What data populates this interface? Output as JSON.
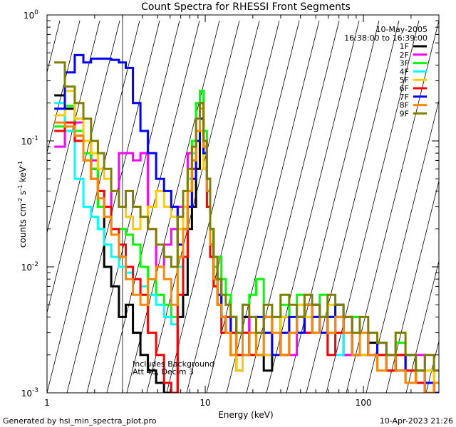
{
  "chart_data": {
    "type": "line",
    "title": "Count Spectra for RHESSI Front Segments",
    "xlabel": "Energy (keV)",
    "ylabel_parts": [
      "counts cm",
      "-2",
      " s",
      "-1",
      " keV",
      "-1"
    ],
    "x_scale": "log",
    "y_scale": "log",
    "xlim": [
      1,
      300
    ],
    "ylim": [
      0.001,
      1
    ],
    "x_ticks": [
      {
        "value": 1,
        "label": "1"
      },
      {
        "value": 10,
        "label": "10"
      },
      {
        "value": 100,
        "label": "100"
      }
    ],
    "y_ticks": [
      {
        "value": 1,
        "base": "10",
        "exp": "0"
      },
      {
        "value": 0.1,
        "base": "10",
        "exp": "-1"
      },
      {
        "value": 0.01,
        "base": "10",
        "exp": "-2"
      },
      {
        "value": 0.001,
        "base": "10",
        "exp": "-3"
      }
    ],
    "date": "10-May-2005",
    "time_range": "16:38:00 to 16:39:00",
    "attenuator_note": "Includes Background",
    "att_note": "Att 40, Decim 3",
    "shaded_below_keV": 3,
    "footer_left": "Generated by hsi_min_spectra_plot.pro",
    "footer_right": "10-Apr-2023 21:26",
    "series": [
      {
        "name": "1F",
        "color": "#000000",
        "x": [
          1.2,
          1.4,
          1.6,
          1.8,
          2.0,
          2.2,
          2.4,
          2.7,
          3.0,
          3.3,
          3.7,
          4.1,
          4.6,
          5.2,
          5.8,
          6.4,
          7.0,
          7.5,
          8.0,
          8.5,
          9.0,
          9.5,
          10.0,
          10.5,
          11.0,
          11.6,
          12.3,
          13.0,
          14.0,
          15.0,
          16.5,
          18,
          20,
          22,
          25,
          28,
          32,
          36,
          40,
          45,
          50,
          56,
          63,
          70,
          80,
          90,
          100,
          115,
          130,
          150,
          170,
          200,
          230,
          260,
          300
        ],
        "y": [
          0.23,
          0.18,
          0.11,
          0.1,
          0.06,
          0.03,
          0.01,
          0.007,
          0.004,
          0.005,
          0.003,
          0.002,
          0.0015,
          0.0012,
          0.001,
          0.0009,
          0.004,
          0.006,
          0.02,
          0.03,
          0.06,
          0.12,
          0.1,
          0.05,
          0.02,
          0.01,
          0.008,
          0.004,
          0.003,
          0.002,
          0.0015,
          0.004,
          0.003,
          0.002,
          0.0015,
          0.003,
          0.004,
          0.003,
          0.004,
          0.003,
          0.005,
          0.004,
          0.003,
          0.004,
          0.002,
          0.003,
          0.002,
          0.0025,
          0.002,
          0.0015,
          0.002,
          0.0012,
          0.0015,
          0.001,
          0.0012
        ]
      },
      {
        "name": "2F",
        "color": "#ff00ff",
        "x": [
          1.2,
          1.4,
          1.6,
          1.8,
          2.0,
          2.2,
          2.4,
          2.7,
          3.0,
          3.3,
          3.7,
          4.1,
          4.6,
          5.2,
          5.8,
          6.4,
          7.0,
          7.5,
          8.0,
          8.5,
          9.0,
          9.5,
          10.0,
          10.5,
          11.0,
          11.6,
          12.3,
          13.0,
          14.0,
          15.0,
          16.5,
          18,
          20,
          22,
          25,
          28,
          32,
          36,
          40,
          45,
          50,
          56,
          63,
          70,
          80,
          90,
          100,
          115,
          130,
          150,
          170,
          200,
          230,
          260,
          300
        ],
        "y": [
          0.09,
          0.12,
          0.14,
          0.1,
          0.07,
          0.04,
          0.03,
          0.04,
          0.08,
          0.08,
          0.07,
          0.08,
          0.02,
          0.01,
          0.015,
          0.02,
          0.03,
          0.03,
          0.08,
          0.09,
          0.15,
          0.2,
          0.1,
          0.04,
          0.015,
          0.008,
          0.006,
          0.004,
          0.003,
          0.002,
          0.0015,
          0.003,
          0.004,
          0.003,
          0.002,
          0.004,
          0.003,
          0.002,
          0.004,
          0.003,
          0.005,
          0.003,
          0.004,
          0.003,
          0.002,
          0.004,
          0.002,
          0.003,
          0.002,
          0.0015,
          0.002,
          0.0015,
          0.002,
          0.0012,
          0.0015
        ]
      },
      {
        "name": "3F",
        "color": "#00ff00",
        "x": [
          1.2,
          1.4,
          1.6,
          1.8,
          2.0,
          2.2,
          2.4,
          2.7,
          3.0,
          3.3,
          3.7,
          4.1,
          4.6,
          5.2,
          5.8,
          6.4,
          7.0,
          7.5,
          8.0,
          8.5,
          9.0,
          9.5,
          10.0,
          10.5,
          11.0,
          11.6,
          12.3,
          13.0,
          14.0,
          15.0,
          16.5,
          18,
          20,
          22,
          25,
          28,
          32,
          36,
          40,
          45,
          50,
          56,
          63,
          70,
          80,
          90,
          100,
          115,
          130,
          150,
          170,
          200,
          230,
          260,
          300
        ],
        "y": [
          0.13,
          0.19,
          0.12,
          0.08,
          0.06,
          0.03,
          0.025,
          0.02,
          0.02,
          0.018,
          0.015,
          0.01,
          0.008,
          0.006,
          0.005,
          0.004,
          0.02,
          0.03,
          0.05,
          0.1,
          0.2,
          0.25,
          0.12,
          0.05,
          0.02,
          0.01,
          0.012,
          0.008,
          0.006,
          0.004,
          0.003,
          0.005,
          0.006,
          0.008,
          0.004,
          0.003,
          0.005,
          0.004,
          0.006,
          0.005,
          0.004,
          0.006,
          0.004,
          0.005,
          0.003,
          0.004,
          0.003,
          0.003,
          0.002,
          0.002,
          0.0025,
          0.002,
          0.0015,
          0.0015,
          0.0012
        ]
      },
      {
        "name": "4F",
        "color": "#00ffff",
        "x": [
          1.2,
          1.4,
          1.6,
          1.8,
          2.0,
          2.2,
          2.4,
          2.7,
          3.0,
          3.3,
          3.7,
          4.1,
          4.6,
          5.2,
          5.8,
          6.4,
          7.0,
          7.5,
          8.0,
          8.5,
          9.0,
          9.5,
          10.0,
          10.5,
          11.0,
          11.6,
          12.3,
          13.0,
          14.0,
          15.0,
          16.5,
          18,
          20,
          22,
          25,
          28,
          32,
          36,
          40,
          45,
          50,
          56,
          63,
          70,
          80,
          90,
          100,
          115,
          130,
          150,
          170,
          200,
          230,
          260,
          300
        ],
        "y": [
          0.2,
          0.12,
          0.05,
          0.03,
          0.025,
          0.02,
          0.015,
          0.012,
          0.01,
          0.009,
          0.008,
          0.007,
          0.006,
          0.005,
          0.004,
          0.0035,
          0.01,
          0.02,
          0.05,
          0.08,
          0.15,
          0.18,
          0.09,
          0.04,
          0.015,
          0.008,
          0.006,
          0.004,
          0.003,
          0.002,
          0.0015,
          0.002,
          0.003,
          0.002,
          0.004,
          0.003,
          0.002,
          0.003,
          0.005,
          0.004,
          0.003,
          0.004,
          0.003,
          0.002,
          0.003,
          0.002,
          0.003,
          0.002,
          0.0015,
          0.002,
          0.0015,
          0.0012,
          0.0015,
          0.001,
          0.0012
        ]
      },
      {
        "name": "5F",
        "color": "#ffcc00",
        "x": [
          1.2,
          1.4,
          1.6,
          1.8,
          2.0,
          2.2,
          2.4,
          2.7,
          3.0,
          3.3,
          3.7,
          4.1,
          4.6,
          5.2,
          5.8,
          6.4,
          7.0,
          7.5,
          8.0,
          8.5,
          9.0,
          9.5,
          10.0,
          10.5,
          11.0,
          11.6,
          12.3,
          13.0,
          14.0,
          15.0,
          16.5,
          18,
          20,
          22,
          25,
          28,
          32,
          36,
          40,
          45,
          50,
          56,
          63,
          70,
          80,
          90,
          100,
          115,
          130,
          150,
          170,
          200,
          230,
          260,
          300
        ],
        "y": [
          0.16,
          0.25,
          0.15,
          0.1,
          0.08,
          0.06,
          0.05,
          0.04,
          0.03,
          0.025,
          0.02,
          0.025,
          0.03,
          0.04,
          0.03,
          0.025,
          0.02,
          0.03,
          0.04,
          0.06,
          0.1,
          0.12,
          0.06,
          0.03,
          0.012,
          0.007,
          0.005,
          0.004,
          0.003,
          0.002,
          0.0015,
          0.003,
          0.002,
          0.003,
          0.002,
          0.003,
          0.004,
          0.003,
          0.005,
          0.004,
          0.003,
          0.004,
          0.005,
          0.003,
          0.004,
          0.003,
          0.002,
          0.003,
          0.002,
          0.0015,
          0.002,
          0.0015,
          0.0012,
          0.0015,
          0.001
        ]
      },
      {
        "name": "6F",
        "color": "#ff0000",
        "x": [
          1.2,
          1.4,
          1.6,
          1.8,
          2.0,
          2.2,
          2.4,
          2.7,
          3.0,
          3.3,
          3.7,
          4.1,
          4.6,
          5.2,
          5.8,
          6.4,
          7.0,
          7.5,
          8.0,
          8.5,
          9.0,
          9.5,
          10.0,
          10.5,
          11.0,
          11.6,
          12.3,
          13.0,
          14.0,
          15.0,
          16.5,
          18,
          20,
          22,
          25,
          28,
          32,
          36,
          40,
          45,
          50,
          56,
          63,
          70,
          80,
          90,
          100,
          115,
          130,
          150,
          170,
          200,
          230,
          260,
          300
        ],
        "y": [
          0.12,
          0.14,
          0.1,
          0.07,
          0.05,
          0.04,
          0.03,
          0.02,
          0.015,
          0.01,
          0.008,
          0.006,
          0.003,
          0.002,
          0.0012,
          0.001,
          0.006,
          0.012,
          0.03,
          0.06,
          0.1,
          0.15,
          0.08,
          0.03,
          0.012,
          0.007,
          0.005,
          0.003,
          0.004,
          0.003,
          0.002,
          0.003,
          0.002,
          0.003,
          0.004,
          0.003,
          0.002,
          0.003,
          0.004,
          0.003,
          0.004,
          0.003,
          0.002,
          0.003,
          0.004,
          0.002,
          0.003,
          0.002,
          0.002,
          0.0015,
          0.002,
          0.0015,
          0.0012,
          0.001,
          0.0012
        ]
      },
      {
        "name": "7F",
        "color": "#0000ff",
        "x": [
          1.2,
          1.4,
          1.6,
          1.8,
          2.0,
          2.2,
          2.4,
          2.7,
          3.0,
          3.3,
          3.7,
          4.1,
          4.6,
          5.2,
          5.8,
          6.4,
          7.0,
          7.5,
          8.0,
          8.5,
          9.0,
          9.5,
          10.0,
          10.5,
          11.0,
          11.6,
          12.3,
          13.0,
          14.0,
          15.0,
          16.5,
          18,
          20,
          22,
          25,
          28,
          32,
          36,
          40,
          45,
          50,
          56,
          63,
          70,
          80,
          90,
          100,
          115,
          130,
          150,
          170,
          200,
          230,
          260,
          300
        ],
        "y": [
          0.18,
          0.35,
          0.48,
          0.42,
          0.45,
          0.45,
          0.45,
          0.44,
          0.42,
          0.38,
          0.2,
          0.12,
          0.08,
          0.05,
          0.04,
          0.03,
          0.015,
          0.02,
          0.03,
          0.05,
          0.1,
          0.15,
          0.08,
          0.04,
          0.015,
          0.008,
          0.006,
          0.004,
          0.003,
          0.004,
          0.003,
          0.002,
          0.003,
          0.004,
          0.003,
          0.002,
          0.003,
          0.004,
          0.003,
          0.005,
          0.004,
          0.003,
          0.004,
          0.005,
          0.003,
          0.002,
          0.003,
          0.002,
          0.0025,
          0.002,
          0.0015,
          0.002,
          0.0015,
          0.0012,
          0.001
        ]
      },
      {
        "name": "8F",
        "color": "#ff8800",
        "x": [
          1.2,
          1.4,
          1.6,
          1.8,
          2.0,
          2.2,
          2.4,
          2.7,
          3.0,
          3.3,
          3.7,
          4.1,
          4.6,
          5.2,
          5.8,
          6.4,
          7.0,
          7.5,
          8.0,
          8.5,
          9.0,
          9.5,
          10.0,
          10.5,
          11.0,
          11.6,
          12.3,
          13.0,
          14.0,
          15.0,
          16.5,
          18,
          20,
          22,
          25,
          28,
          32,
          36,
          40,
          45,
          50,
          56,
          63,
          70,
          80,
          90,
          100,
          115,
          130,
          150,
          170,
          200,
          230,
          260,
          300
        ],
        "y": [
          0.14,
          0.13,
          0.11,
          0.07,
          0.05,
          0.035,
          0.025,
          0.018,
          0.012,
          0.008,
          0.006,
          0.005,
          0.008,
          0.01,
          0.008,
          0.005,
          0.012,
          0.02,
          0.04,
          0.07,
          0.12,
          0.18,
          0.09,
          0.04,
          0.015,
          0.008,
          0.005,
          0.004,
          0.003,
          0.002,
          0.003,
          0.002,
          0.003,
          0.002,
          0.004,
          0.003,
          0.002,
          0.003,
          0.004,
          0.005,
          0.003,
          0.004,
          0.003,
          0.004,
          0.003,
          0.002,
          0.003,
          0.002,
          0.0015,
          0.002,
          0.0015,
          0.0012,
          0.0015,
          0.001,
          0.0012
        ]
      },
      {
        "name": "9F",
        "color": "#808000",
        "x": [
          1.2,
          1.4,
          1.6,
          1.8,
          2.0,
          2.2,
          2.4,
          2.7,
          3.0,
          3.3,
          3.7,
          4.1,
          4.6,
          5.2,
          5.8,
          6.4,
          7.0,
          7.5,
          8.0,
          8.5,
          9.0,
          9.5,
          10.0,
          10.5,
          11.0,
          11.6,
          12.3,
          13.0,
          14.0,
          15.0,
          16.5,
          18,
          20,
          22,
          25,
          28,
          32,
          36,
          40,
          45,
          50,
          56,
          63,
          70,
          80,
          90,
          100,
          115,
          130,
          150,
          170,
          200,
          230,
          260,
          300
        ],
        "y": [
          0.42,
          0.27,
          0.2,
          0.15,
          0.1,
          0.08,
          0.06,
          0.04,
          0.03,
          0.04,
          0.03,
          0.025,
          0.02,
          0.015,
          0.012,
          0.01,
          0.025,
          0.04,
          0.06,
          0.09,
          0.15,
          0.2,
          0.1,
          0.05,
          0.02,
          0.012,
          0.008,
          0.006,
          0.005,
          0.004,
          0.003,
          0.005,
          0.004,
          0.003,
          0.005,
          0.004,
          0.006,
          0.005,
          0.004,
          0.006,
          0.005,
          0.004,
          0.006,
          0.005,
          0.004,
          0.003,
          0.004,
          0.003,
          0.0025,
          0.002,
          0.003,
          0.002,
          0.0015,
          0.002,
          0.0015
        ]
      }
    ]
  }
}
